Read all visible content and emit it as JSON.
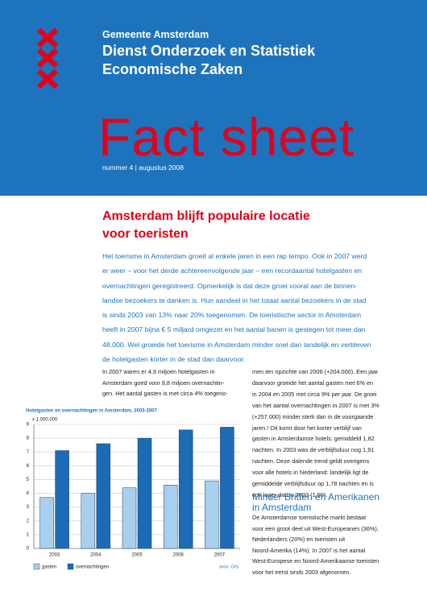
{
  "header": {
    "organization": "Gemeente Amsterdam",
    "department_lines": [
      "Dienst Onderzoek en Statistiek",
      "Economische Zaken"
    ],
    "title": "Fact sheet",
    "issue": "nummer 4 | augustus 2008"
  },
  "article": {
    "heading_lines": [
      "Amsterdam blijft populaire locatie",
      "voor toeristen"
    ],
    "intro_lines": [
      "Het toerisme in Amsterdam groeit al enkele jaren in een rap tempo. Ook in 2007 werd",
      "er weer – voor het derde achtereenvolgende jaar – een recordaantal hotelgasten en",
      "overnachtingen geregistreerd. Opmerkelijk is dat deze groei vooral aan de binnen-",
      "landse bezoekers te danken is. Hun aandeel in het totaal aantal bezoekers in de stad",
      "is sinds 2003 van 13% naar 20% toegenomen. De toeristische sector in Amsterdam",
      "heeft in 2007 bijna € 5 miljard omgezet en het aantal banen is gestegen tot meer dan",
      "48.000. Wel groeide het toerisme in Amsterdam minder snel dan landelijk en verbleven",
      "de hotelgasten korter in de stad dan daarvoor."
    ],
    "left_column_lines": [
      "In 2007 waren er 4,9 miljoen hotelgasten in",
      "Amsterdam goed voor 8,8 miljoen overnachtin-",
      "gen. Het aantal gasten is met circa 4% toegeno-"
    ],
    "right_column_lines": [
      "men ten opzichte van 2006 (+204.000). Een jaar",
      "daarvoor groeide het aantal gasten met 6% en",
      "in 2004 en 2005 met circa 9% per jaar. De groei",
      "van het aantal overnachtingen in 2007 is met 3%",
      "(+257.000) minder sterk dan in de voorgaande",
      "jaren.¹ Dit komt door het korter verblijf van",
      "gasten in Amsterdamse hotels: gemiddeld 1,82",
      "nachten. In 2003 was de verblijfsduur nog 1,91",
      "nachten. Deze dalende trend geldt overigens",
      "voor alle hotels in Nederland: landelijk ligt de",
      "gemiddelde verblijfsduur op 1,78 nachten en is",
      "ook lager dan in 2003 (1,90)."
    ],
    "subheading_lines": [
      "Minder Britten en Amerikanen",
      "in Amsterdam"
    ],
    "subsection_lines": [
      "De Amsterdamse toeristische markt bestaat",
      "voor een groot deel uit West-Europeanen (36%),",
      "Nederlanders (20%) en toeristen uit",
      "Noord-Amerika (14%). In 2007 is het aantal",
      "West-Europese en Noord-Amerikaanse toeristen",
      "voor het eerst sinds 2003 afgenomen."
    ]
  },
  "chart_data": {
    "type": "bar",
    "title": "Hotelgasten en overnachtingen in Amsterdam, 2003-2007",
    "y_unit": "x 1.000.000",
    "source": "bron: OIS",
    "categories": [
      "2003",
      "2004",
      "2005",
      "2006",
      "2007"
    ],
    "series": [
      {
        "name": "gasten",
        "color": "#a9cfee",
        "values": [
          3.7,
          4.0,
          4.4,
          4.6,
          4.9
        ]
      },
      {
        "name": "overnachtingen",
        "color": "#1c6bb6",
        "values": [
          7.1,
          7.6,
          8.0,
          8.6,
          8.8
        ]
      }
    ],
    "ylim": [
      0,
      9
    ],
    "yticks": [
      0,
      1,
      2,
      3,
      4,
      5,
      6,
      7,
      8,
      9
    ],
    "grid": true
  }
}
